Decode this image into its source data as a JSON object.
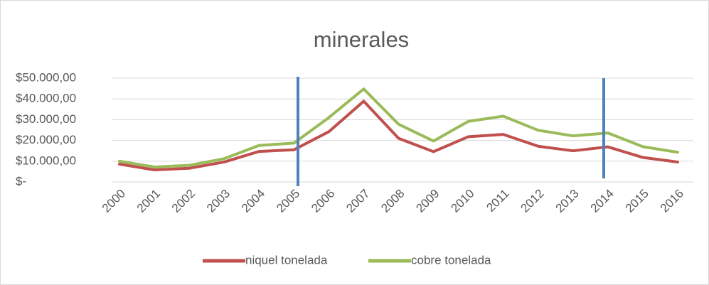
{
  "chart_data": {
    "type": "line",
    "title": "minerales",
    "categories": [
      "2000",
      "2001",
      "2002",
      "2003",
      "2004",
      "2005",
      "2006",
      "2007",
      "2008",
      "2009",
      "2010",
      "2011",
      "2012",
      "2013",
      "2014",
      "2015",
      "2016"
    ],
    "series": [
      {
        "name": "niquel tonelada",
        "color": "#c0504d",
        "values": [
          8600,
          5800,
          6600,
          9600,
          14700,
          15500,
          24200,
          38900,
          21000,
          14600,
          21800,
          22900,
          17200,
          15000,
          16900,
          11800,
          9600
        ]
      },
      {
        "name": "cobre tonelada",
        "color": "#9bbb59",
        "values": [
          10000,
          7200,
          8000,
          11200,
          17600,
          18700,
          31000,
          44800,
          27800,
          19700,
          29200,
          31700,
          24900,
          22200,
          23600,
          17000,
          14300
        ]
      }
    ],
    "ylim": [
      0,
      50000
    ],
    "yticks": [
      {
        "value": 0,
        "label": "$-"
      },
      {
        "value": 10000,
        "label": "$10.000,00"
      },
      {
        "value": 20000,
        "label": "$20.000,00"
      },
      {
        "value": 30000,
        "label": "$30.000,00"
      },
      {
        "value": 40000,
        "label": "$40.000,00"
      },
      {
        "value": 50000,
        "label": "$50.000,00"
      }
    ],
    "grid": true,
    "legend": "bottom"
  }
}
